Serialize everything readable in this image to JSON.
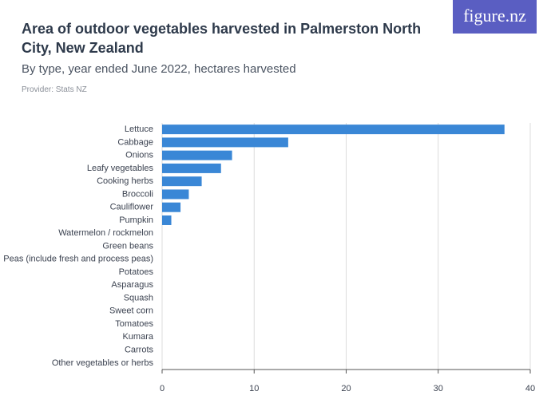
{
  "chart_data": {
    "type": "bar",
    "orientation": "horizontal",
    "title": "Area of outdoor vegetables harvested in Palmerston North City, New Zealand",
    "subtitle": "By type, year ended June 2022, hectares harvested",
    "source": "Provider: Stats NZ",
    "logo": "figure.nz",
    "categories": [
      "Lettuce",
      "Cabbage",
      "Onions",
      "Leafy vegetables",
      "Cooking herbs",
      "Broccoli",
      "Cauliflower",
      "Pumpkin",
      "Watermelon / rockmelon",
      "Green beans",
      "Peas (include fresh and process peas)",
      "Potatoes",
      "Asparagus",
      "Squash",
      "Sweet corn",
      "Tomatoes",
      "Kumara",
      "Carrots",
      "Other vegetables or herbs"
    ],
    "values": [
      37.2,
      13.7,
      7.6,
      6.4,
      4.3,
      2.9,
      2.0,
      1.0,
      0,
      0,
      0,
      0,
      0,
      0,
      0,
      0,
      0,
      0,
      0
    ],
    "color": "#3a87d6",
    "xlim": [
      0,
      40
    ],
    "xticks": [
      0,
      10,
      20,
      30,
      40
    ],
    "grid": true
  }
}
